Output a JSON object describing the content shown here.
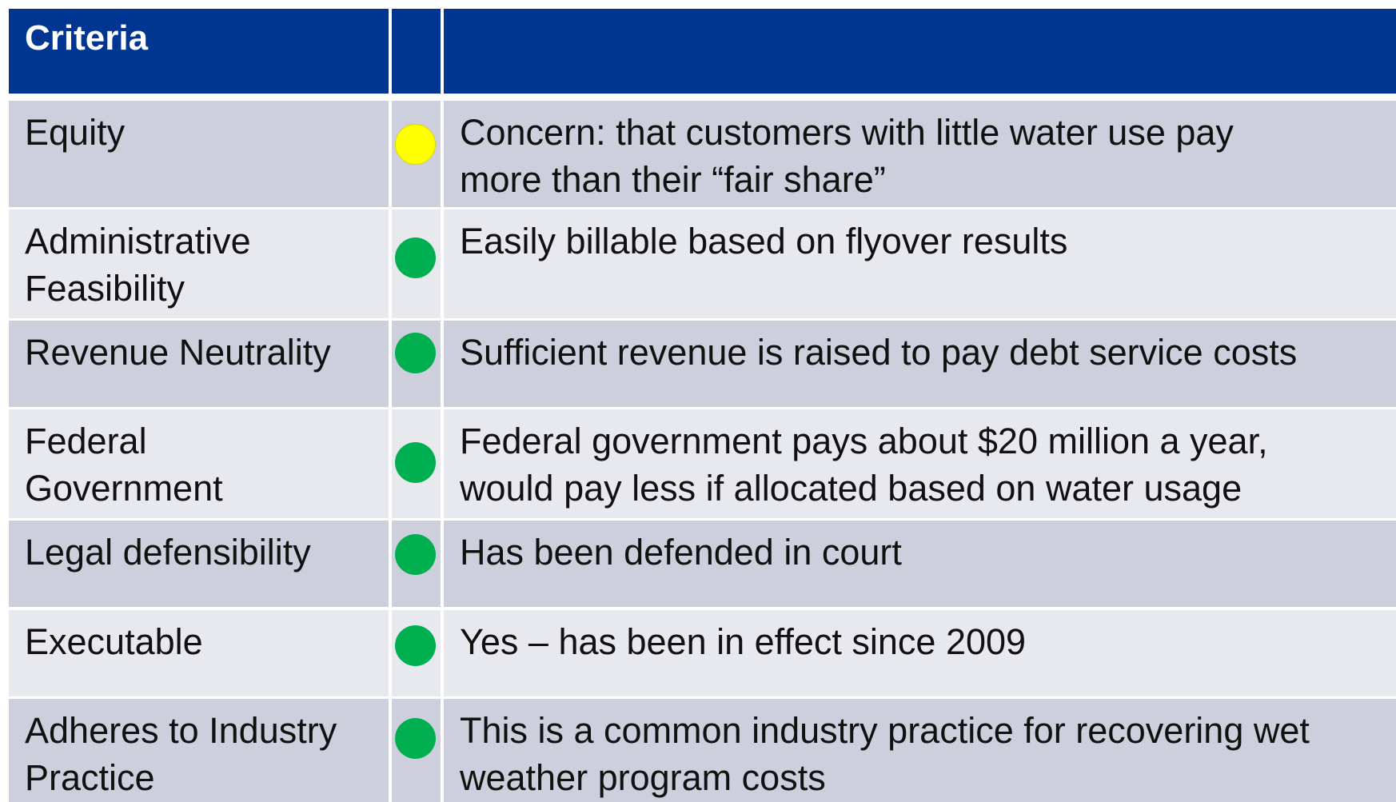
{
  "table": {
    "header": [
      "Criteria",
      "",
      ""
    ],
    "rows": [
      {
        "criterion": "Equity",
        "color": "#ffff00",
        "comment": "Concern: that customers with little water use pay\nmore than their “fair share”"
      },
      {
        "criterion": "Administrative\nFeasibility",
        "color": "#00b050",
        "comment": "Easily billable based on flyover results"
      },
      {
        "criterion": "Revenue Neutrality",
        "color": "#00b050",
        "comment": "Sufficient revenue is raised to pay debt service costs"
      },
      {
        "criterion": "Federal\nGovernment",
        "color": "#00b050",
        "comment": "Federal government pays about $20 million a year,\nwould pay less if allocated based on water usage"
      },
      {
        "criterion": "Legal defensibility",
        "color": "#00b050",
        "comment": "Has been defended in court"
      },
      {
        "criterion": "Executable",
        "color": "#00b050",
        "comment": "Yes – has been in effect since 2009"
      },
      {
        "criterion": "Adheres to Industry\nPractice",
        "color": "#00b050",
        "comment": "This is a common industry practice for recovering wet\nweather program costs"
      }
    ]
  }
}
